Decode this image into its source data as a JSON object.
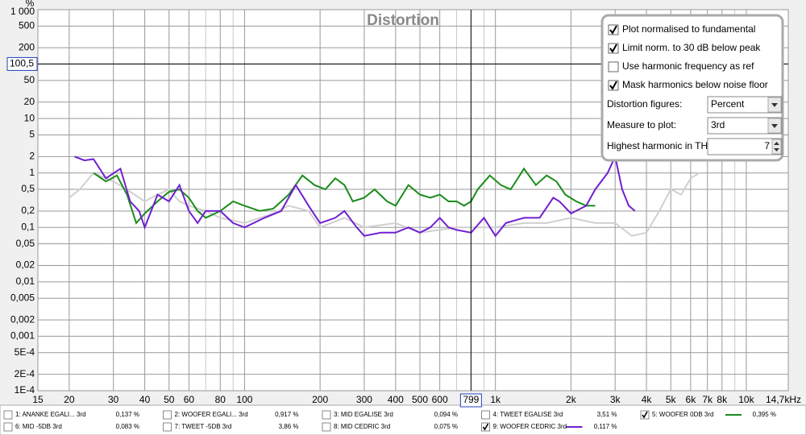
{
  "chart_data": {
    "type": "line",
    "title": "Distortion",
    "y_unit": "%",
    "xscale": "log",
    "yscale": "log",
    "grid": true,
    "xlim": [
      15,
      14700
    ],
    "ylim": [
      0.0001,
      1000
    ],
    "xticks": [
      15,
      20,
      30,
      40,
      50,
      60,
      80,
      100,
      200,
      300,
      400,
      500,
      600,
      {
        "value": 1000,
        "label": "1k"
      },
      {
        "value": 2000,
        "label": "2k"
      },
      {
        "value": 3000,
        "label": "3k"
      },
      {
        "value": 4000,
        "label": "4k"
      },
      {
        "value": 5000,
        "label": "5k"
      },
      {
        "value": 6000,
        "label": "6k"
      },
      {
        "value": 7000,
        "label": "7k"
      },
      {
        "value": 8000,
        "label": "8k"
      },
      {
        "value": 10000,
        "label": "10k"
      },
      {
        "value": 14700,
        "label": "14,7kHz"
      }
    ],
    "x_minor_grid": [
      70,
      90,
      700,
      800,
      900,
      9000
    ],
    "yticks": [
      {
        "value": 1000,
        "label": "1 000"
      },
      500,
      200,
      100,
      50,
      20,
      10,
      5,
      2,
      1,
      {
        "value": 0.5,
        "label": "0,5"
      },
      {
        "value": 0.2,
        "label": "0,2"
      },
      {
        "value": 0.1,
        "label": "0,1"
      },
      {
        "value": 0.05,
        "label": "0,05"
      },
      {
        "value": 0.02,
        "label": "0,02"
      },
      {
        "value": 0.01,
        "label": "0,01"
      },
      {
        "value": 0.005,
        "label": "0,005"
      },
      {
        "value": 0.002,
        "label": "0,002"
      },
      {
        "value": 0.001,
        "label": "0,001"
      },
      {
        "value": 0.0005,
        "label": "5E-4"
      },
      {
        "value": 0.0002,
        "label": "2E-4"
      },
      {
        "value": 0.0001,
        "label": "1E-4"
      }
    ],
    "cursor": {
      "x": {
        "value": 799,
        "label": "799"
      },
      "y": {
        "value": 100.5,
        "label": "100,5"
      }
    },
    "series": [
      {
        "color": "#d0d0d0",
        "x": [
          20,
          22,
          25,
          28,
          30,
          35,
          40,
          45,
          50,
          55,
          60,
          70,
          80,
          100,
          130,
          150,
          180,
          200,
          250,
          300,
          400,
          500,
          700,
          1000,
          1300,
          1600,
          2000,
          2500,
          3000,
          3500,
          4000,
          4500,
          5000,
          5500,
          6000,
          6500
        ],
        "values": [
          0.35,
          0.5,
          1.0,
          0.8,
          0.7,
          0.45,
          0.3,
          0.4,
          0.5,
          0.3,
          0.25,
          0.2,
          0.15,
          0.12,
          0.18,
          0.25,
          0.2,
          0.1,
          0.15,
          0.1,
          0.12,
          0.08,
          0.1,
          0.1,
          0.12,
          0.12,
          0.15,
          0.12,
          0.12,
          0.07,
          0.08,
          0.2,
          0.5,
          0.4,
          0.8,
          1.0
        ]
      },
      {
        "name": "WOOFER 0DB 3rd",
        "color": "#1a8c1a",
        "x": [
          25,
          28,
          31,
          34,
          37,
          40,
          45,
          50,
          55,
          60,
          65,
          70,
          80,
          90,
          100,
          115,
          130,
          150,
          170,
          190,
          210,
          230,
          250,
          270,
          300,
          330,
          370,
          400,
          450,
          500,
          550,
          600,
          650,
          700,
          750,
          800,
          850,
          950,
          1050,
          1150,
          1300,
          1450,
          1600,
          1750,
          1900,
          2100,
          2300,
          2500
        ],
        "values": [
          1.0,
          0.7,
          0.9,
          0.4,
          0.12,
          0.18,
          0.3,
          0.45,
          0.5,
          0.35,
          0.2,
          0.15,
          0.2,
          0.3,
          0.25,
          0.2,
          0.22,
          0.4,
          0.9,
          0.6,
          0.5,
          0.8,
          0.6,
          0.3,
          0.35,
          0.5,
          0.3,
          0.25,
          0.6,
          0.4,
          0.35,
          0.4,
          0.3,
          0.3,
          0.25,
          0.3,
          0.5,
          0.9,
          0.6,
          0.5,
          1.2,
          0.6,
          0.9,
          0.7,
          0.4,
          0.3,
          0.25,
          0.25
        ]
      },
      {
        "name": "WOOFER CEDRIC 3rd",
        "color": "#7020d0",
        "x": [
          21,
          23,
          25,
          28,
          32,
          35,
          38,
          40,
          45,
          50,
          55,
          60,
          65,
          70,
          80,
          90,
          100,
          120,
          140,
          160,
          180,
          200,
          230,
          250,
          280,
          300,
          350,
          400,
          450,
          500,
          550,
          600,
          650,
          700,
          800,
          900,
          1000,
          1100,
          1300,
          1500,
          1700,
          1800,
          2000,
          2300,
          2500,
          2800,
          3000,
          3200,
          3400,
          3600
        ],
        "values": [
          2.0,
          1.7,
          1.8,
          0.8,
          1.2,
          0.3,
          0.2,
          0.1,
          0.4,
          0.3,
          0.6,
          0.2,
          0.12,
          0.2,
          0.2,
          0.12,
          0.1,
          0.15,
          0.2,
          0.6,
          0.25,
          0.12,
          0.15,
          0.2,
          0.1,
          0.07,
          0.08,
          0.08,
          0.1,
          0.08,
          0.1,
          0.15,
          0.1,
          0.09,
          0.08,
          0.15,
          0.07,
          0.12,
          0.15,
          0.15,
          0.35,
          0.3,
          0.18,
          0.25,
          0.5,
          1.0,
          2.0,
          0.5,
          0.25,
          0.2
        ]
      }
    ]
  },
  "controls": {
    "checkboxes": [
      {
        "label": "Plot normalised to fundamental",
        "checked": true
      },
      {
        "label": "Limit norm. to 30 dB below peak",
        "checked": true
      },
      {
        "label": "Use harmonic frequency as ref",
        "checked": false
      },
      {
        "label": "Mask harmonics below noise floor",
        "checked": true
      }
    ],
    "fields": [
      {
        "label": "Distortion figures:",
        "value": "Percent",
        "kind": "dropdown"
      },
      {
        "label": "Measure to plot:",
        "value": "3rd",
        "kind": "dropdown"
      },
      {
        "label": "Highest harmonic in THD:",
        "value": "7",
        "kind": "spinner"
      }
    ]
  },
  "legend": [
    {
      "name": "1: ANANKE EGALI... 3rd",
      "label": "0,137 %",
      "color": "#d03030",
      "checked": false
    },
    {
      "name": "2: WOOFER EGALI... 3rd",
      "label": "0,917 %",
      "color": "#2a8a2a",
      "checked": false
    },
    {
      "name": "3: MID EGALISE 3rd",
      "label": "0,094 %",
      "color": "#5050c8",
      "checked": false
    },
    {
      "name": "4: TWEET EGALISE 3rd",
      "label": "3,51 %",
      "color": "#e08020",
      "checked": false
    },
    {
      "name": "5: WOOFER 0DB 3rd",
      "label": "0,395 %",
      "color": "#1a8c1a",
      "checked": true
    },
    {
      "name": "6: MID -5DB 3rd",
      "label": "0,083 %",
      "color": "#2070c0",
      "checked": false
    },
    {
      "name": "7: TWEET -5DB 3rd",
      "label": "3,86 %",
      "color": "#c06010",
      "checked": false
    },
    {
      "name": "8: MID CEDRIC 3rd",
      "label": "0,075 %",
      "color": "#209090",
      "checked": false
    },
    {
      "name": "9: WOOFER CEDRIC 3rd",
      "label": "0,117 %",
      "color": "#7020d0",
      "checked": true
    }
  ]
}
